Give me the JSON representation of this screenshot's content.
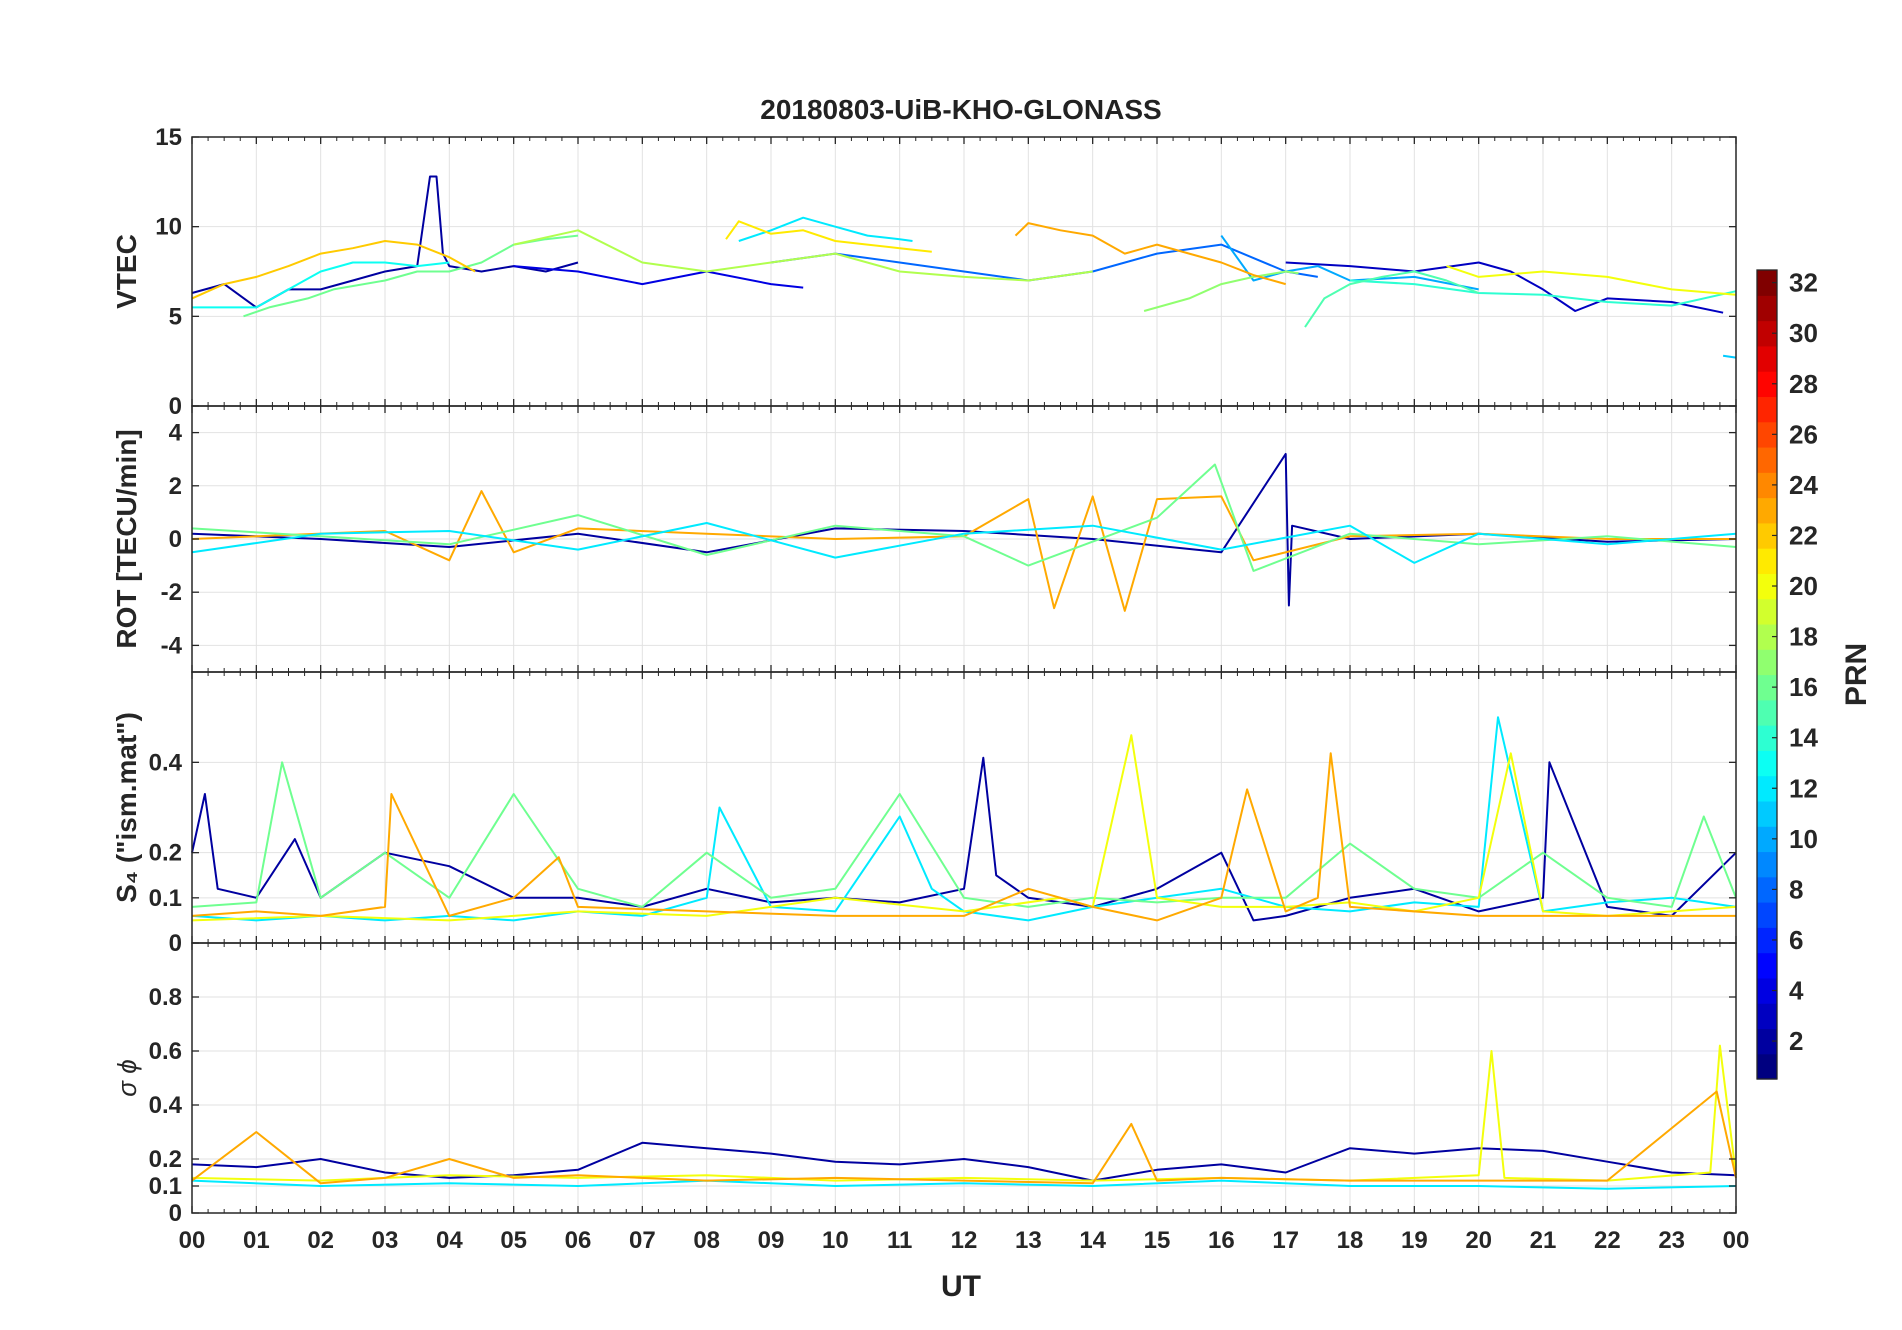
{
  "title": "20180803-UiB-KHO-GLONASS",
  "xlabel": "UT",
  "x_tick_labels": [
    "00",
    "01",
    "02",
    "03",
    "04",
    "05",
    "06",
    "07",
    "08",
    "09",
    "10",
    "11",
    "12",
    "13",
    "14",
    "15",
    "16",
    "17",
    "18",
    "19",
    "20",
    "21",
    "22",
    "23",
    "00"
  ],
  "colorbar": {
    "label": "PRN",
    "range": [
      1,
      32
    ],
    "ticks": [
      2,
      4,
      6,
      8,
      10,
      12,
      14,
      16,
      18,
      20,
      22,
      24,
      26,
      28,
      30,
      32
    ],
    "colormap": "jet"
  },
  "chart_data": [
    {
      "type": "line",
      "panel": "vtec",
      "ylabel": "VTEC",
      "xlim": [
        0,
        24
      ],
      "ylim": [
        0,
        15
      ],
      "yticks": [
        0,
        5,
        10,
        15
      ],
      "grid": true,
      "series": [
        {
          "prn": 2,
          "x": [
            0,
            0.5,
            1,
            1.5,
            2,
            2.5,
            3,
            3.5,
            3.7,
            3.8,
            3.9,
            4,
            4.5,
            5,
            5.5,
            6
          ],
          "y": [
            6.3,
            6.8,
            5.5,
            6.5,
            6.5,
            7,
            7.5,
            7.8,
            12.8,
            12.8,
            8.5,
            7.8,
            7.5,
            7.8,
            7.5,
            8
          ]
        },
        {
          "prn": 4,
          "x": [
            5,
            6,
            7,
            8,
            9,
            9.5
          ],
          "y": [
            7.8,
            7.5,
            6.8,
            7.5,
            6.8,
            6.6
          ]
        },
        {
          "prn": 3,
          "x": [
            17,
            18,
            19,
            20,
            20.5,
            21,
            21.5,
            22,
            23,
            23.8
          ],
          "y": [
            8,
            7.8,
            7.5,
            8,
            7.5,
            6.5,
            5.3,
            6,
            5.8,
            5.2
          ]
        },
        {
          "prn": 8,
          "x": [
            9,
            10,
            11,
            12,
            13,
            14,
            15,
            16,
            17,
            17.5
          ],
          "y": [
            8,
            8.5,
            8,
            7.5,
            7,
            7.5,
            8.5,
            9,
            7.5,
            7.2
          ]
        },
        {
          "prn": 10,
          "x": [
            16,
            16.5,
            17,
            17.5,
            18,
            19,
            20
          ],
          "y": [
            9.5,
            7,
            7.5,
            7.8,
            7,
            7.2,
            6.5
          ]
        },
        {
          "prn": 12,
          "x": [
            8.5,
            9,
            9.5,
            10,
            10.5,
            11,
            11.2
          ],
          "y": [
            9.2,
            9.8,
            10.5,
            10,
            9.5,
            9.3,
            9.2
          ]
        },
        {
          "prn": 13,
          "x": [
            0,
            0.5,
            1,
            1.5,
            2,
            2.5,
            3,
            3.5,
            4
          ],
          "y": [
            5.5,
            5.5,
            5.5,
            6.5,
            7.5,
            8,
            8,
            7.8,
            8
          ]
        },
        {
          "prn": 14,
          "x": [
            18,
            19,
            20,
            21,
            22,
            23,
            24
          ],
          "y": [
            7,
            6.8,
            6.3,
            6.2,
            5.8,
            5.6,
            6.4
          ]
        },
        {
          "prn": 16,
          "x": [
            0.8,
            1.2,
            1.8,
            2.2,
            3,
            3.5,
            4,
            4.5,
            5,
            5.5,
            6
          ],
          "y": [
            5,
            5.5,
            6,
            6.5,
            7,
            7.5,
            7.5,
            8,
            9,
            9.3,
            9.5
          ]
        },
        {
          "prn": 17,
          "x": [
            14.8,
            15.5,
            16,
            16.5,
            17,
            17.2
          ],
          "y": [
            5.3,
            6,
            6.8,
            7.2,
            7.5,
            7.4
          ]
        },
        {
          "prn": 18,
          "x": [
            5,
            6,
            7,
            8,
            9,
            10,
            11,
            12,
            13,
            14
          ],
          "y": [
            9,
            9.8,
            8,
            7.5,
            8,
            8.5,
            7.5,
            7.2,
            7,
            7.5
          ]
        },
        {
          "prn": 20,
          "x": [
            19.5,
            20,
            21,
            22,
            23,
            24
          ],
          "y": [
            7.8,
            7.2,
            7.5,
            7.2,
            6.5,
            6.2
          ]
        },
        {
          "prn": 21,
          "x": [
            8.3,
            8.5,
            9,
            9.5,
            10,
            10.5,
            11,
            11.5
          ],
          "y": [
            9.3,
            10.3,
            9.6,
            9.8,
            9.2,
            9,
            8.8,
            8.6
          ]
        },
        {
          "prn": 22,
          "x": [
            0,
            0.5,
            1,
            1.5,
            2,
            2.5,
            3,
            3.5,
            4,
            4.4
          ],
          "y": [
            6,
            6.8,
            7.2,
            7.8,
            8.5,
            8.8,
            9.2,
            9,
            8.3,
            7.5
          ]
        },
        {
          "prn": 23,
          "x": [
            12.8,
            13,
            13.5,
            14,
            14.5,
            15,
            15.5,
            16,
            16.5,
            17
          ],
          "y": [
            9.5,
            10.2,
            9.8,
            9.5,
            8.5,
            9,
            8.5,
            8,
            7.3,
            6.8
          ]
        },
        {
          "prn": 15,
          "x": [
            17.3,
            17.6,
            18,
            18.5,
            19,
            19.5,
            20
          ],
          "y": [
            4.4,
            6,
            6.8,
            7.2,
            7.5,
            7,
            6.3
          ]
        },
        {
          "prn": 11,
          "x": [
            23.8,
            24
          ],
          "y": [
            2.8,
            2.7
          ]
        }
      ]
    },
    {
      "type": "line",
      "panel": "rot",
      "ylabel": "ROT [TECU/min]",
      "xlim": [
        0,
        24
      ],
      "ylim": [
        -5,
        5
      ],
      "yticks": [
        -4,
        -2,
        0,
        2,
        4
      ],
      "grid": true,
      "series": [
        {
          "prn": 2,
          "x": [
            0,
            2,
            4,
            6,
            8,
            10,
            12,
            14,
            16,
            17,
            17.05,
            17.1,
            18,
            20,
            22,
            24
          ],
          "y": [
            0.2,
            0,
            -0.3,
            0.2,
            -0.5,
            0.4,
            0.3,
            0,
            -0.5,
            3.2,
            -2.5,
            0.5,
            0,
            0.2,
            -0.1,
            0
          ]
        },
        {
          "prn": 23,
          "x": [
            0,
            3,
            4,
            4.5,
            5,
            6,
            8,
            10,
            12,
            13,
            13.4,
            14,
            14.5,
            15,
            16,
            16.5,
            18,
            20,
            22,
            24
          ],
          "y": [
            0,
            0.3,
            -0.8,
            1.8,
            -0.5,
            0.4,
            0.2,
            0,
            0.1,
            1.5,
            -2.6,
            1.6,
            -2.7,
            1.5,
            1.6,
            -0.8,
            0.1,
            0.2,
            0,
            0
          ]
        },
        {
          "prn": 16,
          "x": [
            0,
            2,
            4,
            6,
            8,
            10,
            12,
            13,
            15,
            15.9,
            16.5,
            18,
            20,
            22,
            24
          ],
          "y": [
            0.4,
            0.1,
            -0.2,
            0.9,
            -0.6,
            0.5,
            0.1,
            -1,
            0.8,
            2.8,
            -1.2,
            0.2,
            -0.2,
            0.1,
            -0.3
          ]
        },
        {
          "prn": 12,
          "x": [
            0,
            2,
            4,
            6,
            8,
            10,
            12,
            14,
            16,
            18,
            19,
            20,
            22,
            24
          ],
          "y": [
            -0.5,
            0.2,
            0.3,
            -0.4,
            0.6,
            -0.7,
            0.2,
            0.5,
            -0.4,
            0.5,
            -0.9,
            0.2,
            -0.2,
            0.2
          ]
        }
      ]
    },
    {
      "type": "line",
      "panel": "s4",
      "ylabel": "S₄ (\"ism.mat\")",
      "xlim": [
        0,
        24
      ],
      "ylim": [
        0,
        0.6
      ],
      "yticks": [
        0,
        0.1,
        0.2,
        0.4
      ],
      "grid": true,
      "series": [
        {
          "prn": 2,
          "x": [
            0,
            0.2,
            0.4,
            1,
            1.6,
            2,
            3,
            4,
            5,
            6,
            7,
            8,
            9,
            10,
            11,
            12,
            12.3,
            12.5,
            13,
            14,
            15,
            16,
            16.5,
            17,
            18,
            19,
            20,
            21,
            21.1,
            22,
            23,
            24
          ],
          "y": [
            0.2,
            0.33,
            0.12,
            0.1,
            0.23,
            0.1,
            0.2,
            0.17,
            0.1,
            0.1,
            0.08,
            0.12,
            0.09,
            0.1,
            0.09,
            0.12,
            0.41,
            0.15,
            0.1,
            0.08,
            0.12,
            0.2,
            0.05,
            0.06,
            0.1,
            0.12,
            0.07,
            0.1,
            0.4,
            0.08,
            0.06,
            0.2
          ]
        },
        {
          "prn": 12,
          "x": [
            0,
            1,
            2,
            3,
            4,
            5,
            6,
            7,
            8,
            8.2,
            9,
            10,
            11,
            11.5,
            12,
            13,
            14,
            15,
            16,
            17,
            18,
            19,
            20,
            20.3,
            21,
            22,
            23,
            24
          ],
          "y": [
            0.06,
            0.05,
            0.06,
            0.05,
            0.06,
            0.05,
            0.07,
            0.06,
            0.1,
            0.3,
            0.08,
            0.07,
            0.28,
            0.12,
            0.07,
            0.05,
            0.08,
            0.1,
            0.12,
            0.08,
            0.07,
            0.09,
            0.08,
            0.5,
            0.07,
            0.09,
            0.1,
            0.08
          ]
        },
        {
          "prn": 16,
          "x": [
            0,
            1,
            1.4,
            2,
            3,
            4,
            5,
            6,
            7,
            8,
            9,
            10,
            11,
            12,
            13,
            14,
            15,
            16,
            17,
            18,
            19,
            20,
            21,
            22,
            23,
            23.5,
            24
          ],
          "y": [
            0.08,
            0.09,
            0.4,
            0.1,
            0.2,
            0.1,
            0.33,
            0.12,
            0.08,
            0.2,
            0.1,
            0.12,
            0.33,
            0.1,
            0.08,
            0.1,
            0.09,
            0.1,
            0.1,
            0.22,
            0.12,
            0.1,
            0.2,
            0.1,
            0.08,
            0.28,
            0.1
          ]
        },
        {
          "prn": 20,
          "x": [
            0,
            2,
            4,
            6,
            8,
            10,
            12,
            13.5,
            14,
            14.6,
            15,
            16,
            17,
            18,
            19,
            20,
            20.5,
            21,
            22,
            23,
            24
          ],
          "y": [
            0.05,
            0.06,
            0.05,
            0.07,
            0.06,
            0.1,
            0.07,
            0.1,
            0.08,
            0.46,
            0.1,
            0.08,
            0.08,
            0.09,
            0.07,
            0.1,
            0.42,
            0.07,
            0.06,
            0.07,
            0.08
          ]
        },
        {
          "prn": 23,
          "x": [
            0,
            1,
            2,
            3,
            3.1,
            4,
            5,
            5.7,
            6,
            8,
            10,
            12,
            13,
            14,
            15,
            16,
            16.4,
            17,
            17.5,
            17.7,
            18,
            20,
            22,
            24
          ],
          "y": [
            0.06,
            0.07,
            0.06,
            0.08,
            0.33,
            0.06,
            0.1,
            0.19,
            0.08,
            0.07,
            0.06,
            0.06,
            0.12,
            0.08,
            0.05,
            0.1,
            0.34,
            0.07,
            0.1,
            0.42,
            0.08,
            0.06,
            0.06,
            0.06
          ]
        }
      ]
    },
    {
      "type": "line",
      "panel": "sigma_phi",
      "ylabel": "σ ϕ",
      "xlim": [
        0,
        24
      ],
      "ylim": [
        0,
        1
      ],
      "yticks": [
        0,
        0.1,
        0.2,
        0.4,
        0.6,
        0.8
      ],
      "grid": true,
      "series": [
        {
          "prn": 2,
          "x": [
            0,
            1,
            2,
            3,
            4,
            5,
            6,
            7,
            8,
            9,
            10,
            11,
            12,
            13,
            14,
            15,
            16,
            17,
            18,
            19,
            20,
            21,
            22,
            23,
            24
          ],
          "y": [
            0.18,
            0.17,
            0.2,
            0.15,
            0.13,
            0.14,
            0.16,
            0.26,
            0.24,
            0.22,
            0.19,
            0.18,
            0.2,
            0.17,
            0.12,
            0.16,
            0.18,
            0.15,
            0.24,
            0.22,
            0.24,
            0.23,
            0.19,
            0.15,
            0.14
          ]
        },
        {
          "prn": 12,
          "x": [
            0,
            2,
            4,
            6,
            8,
            10,
            12,
            14,
            16,
            18,
            20,
            22,
            24
          ],
          "y": [
            0.12,
            0.1,
            0.11,
            0.1,
            0.12,
            0.1,
            0.11,
            0.1,
            0.12,
            0.1,
            0.1,
            0.09,
            0.1
          ]
        },
        {
          "prn": 20,
          "x": [
            0,
            2,
            4,
            6,
            8,
            10,
            12,
            14,
            16,
            18,
            20,
            20.2,
            20.4,
            22,
            23.6,
            23.75,
            24
          ],
          "y": [
            0.13,
            0.12,
            0.14,
            0.13,
            0.14,
            0.12,
            0.13,
            0.12,
            0.13,
            0.12,
            0.14,
            0.6,
            0.13,
            0.12,
            0.15,
            0.62,
            0.14
          ]
        },
        {
          "prn": 23,
          "x": [
            0,
            1,
            2,
            3,
            4,
            5,
            6,
            8,
            10,
            12,
            14,
            14.6,
            15,
            16,
            18,
            20,
            22,
            23.7,
            24
          ],
          "y": [
            0.12,
            0.3,
            0.11,
            0.13,
            0.2,
            0.13,
            0.14,
            0.12,
            0.13,
            0.12,
            0.11,
            0.33,
            0.12,
            0.13,
            0.12,
            0.12,
            0.12,
            0.45,
            0.13
          ]
        }
      ]
    }
  ]
}
